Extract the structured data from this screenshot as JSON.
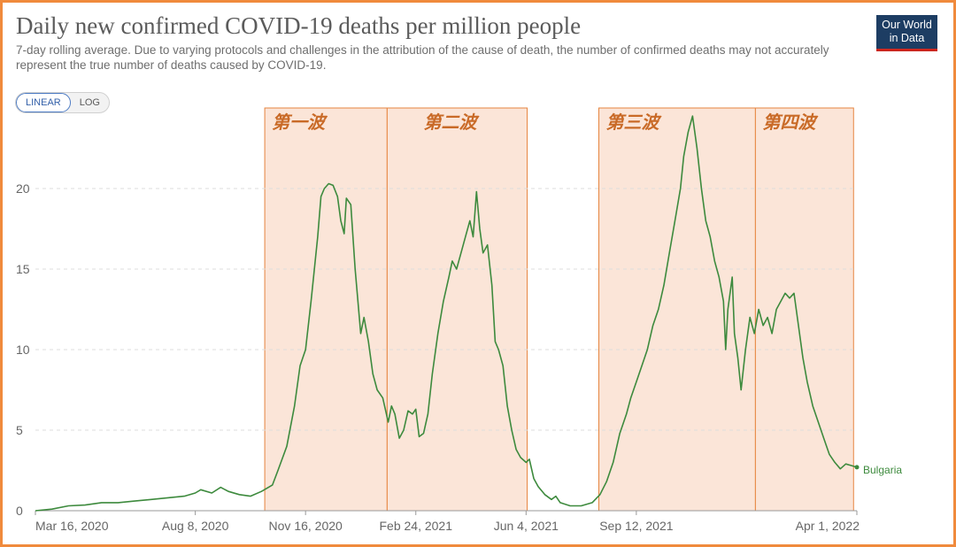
{
  "header": {
    "title": "Daily new confirmed COVID-19 deaths per million people",
    "subtitle": "7-day rolling average. Due to varying protocols and challenges in the attribution of the cause of death, the number of confirmed deaths may not accurately represent the true number of deaths caused by COVID-19.",
    "logo_line1": "Our World",
    "logo_line2": "in Data"
  },
  "scale_toggle": {
    "linear_label": "LINEAR",
    "log_label": "LOG",
    "selected": "LINEAR"
  },
  "colors": {
    "line": "#3d8a3d",
    "band_fill": "#fbe5d8",
    "band_border": "#e6843f",
    "label": "#c96a27",
    "frame": "#f08a3c"
  },
  "chart_data": {
    "type": "line",
    "title": "Daily new confirmed COVID-19 deaths per million people",
    "xlabel": "",
    "ylabel": "",
    "ylim": [
      0,
      25
    ],
    "xlim_days": [
      0,
      745
    ],
    "y_ticks": [
      0,
      5,
      10,
      15,
      20
    ],
    "x_ticks": [
      {
        "label": "Mar 16, 2020",
        "day": 0
      },
      {
        "label": "Aug 8, 2020",
        "day": 145
      },
      {
        "label": "Nov 16, 2020",
        "day": 245
      },
      {
        "label": "Feb 24, 2021",
        "day": 345
      },
      {
        "label": "Jun 4, 2021",
        "day": 445
      },
      {
        "label": "Sep 12, 2021",
        "day": 545
      },
      {
        "label": "Apr 1, 2022",
        "day": 745
      }
    ],
    "series": [
      {
        "name": "Bulgaria",
        "points": [
          [
            0,
            0
          ],
          [
            15,
            0.1
          ],
          [
            30,
            0.3
          ],
          [
            45,
            0.35
          ],
          [
            60,
            0.5
          ],
          [
            75,
            0.5
          ],
          [
            90,
            0.6
          ],
          [
            105,
            0.7
          ],
          [
            120,
            0.8
          ],
          [
            135,
            0.9
          ],
          [
            145,
            1.1
          ],
          [
            150,
            1.3
          ],
          [
            160,
            1.1
          ],
          [
            168,
            1.45
          ],
          [
            175,
            1.2
          ],
          [
            185,
            1.0
          ],
          [
            195,
            0.9
          ],
          [
            205,
            1.2
          ],
          [
            215,
            1.6
          ],
          [
            220,
            2.5
          ],
          [
            228,
            4.0
          ],
          [
            235,
            6.5
          ],
          [
            240,
            9.0
          ],
          [
            245,
            10.0
          ],
          [
            250,
            13.0
          ],
          [
            256,
            17.0
          ],
          [
            259,
            19.5
          ],
          [
            262,
            20.0
          ],
          [
            266,
            20.3
          ],
          [
            270,
            20.2
          ],
          [
            274,
            19.5
          ],
          [
            277,
            18.0
          ],
          [
            280,
            17.2
          ],
          [
            282,
            19.4
          ],
          [
            286,
            19.0
          ],
          [
            290,
            15.0
          ],
          [
            295,
            11.0
          ],
          [
            298,
            12.0
          ],
          [
            302,
            10.5
          ],
          [
            306,
            8.5
          ],
          [
            310,
            7.5
          ],
          [
            315,
            7.0
          ],
          [
            320,
            5.5
          ],
          [
            323,
            6.5
          ],
          [
            326,
            6.0
          ],
          [
            330,
            4.5
          ],
          [
            334,
            5.0
          ],
          [
            338,
            6.2
          ],
          [
            342,
            6.0
          ],
          [
            345,
            6.3
          ],
          [
            348,
            4.6
          ],
          [
            352,
            4.8
          ],
          [
            356,
            6.0
          ],
          [
            360,
            8.5
          ],
          [
            365,
            11.0
          ],
          [
            370,
            13.0
          ],
          [
            375,
            14.5
          ],
          [
            378,
            15.5
          ],
          [
            382,
            15.0
          ],
          [
            386,
            16.0
          ],
          [
            390,
            17.0
          ],
          [
            394,
            18.0
          ],
          [
            397,
            17.0
          ],
          [
            400,
            19.8
          ],
          [
            403,
            17.5
          ],
          [
            406,
            16.0
          ],
          [
            410,
            16.5
          ],
          [
            414,
            14.0
          ],
          [
            417,
            10.5
          ],
          [
            420,
            10.0
          ],
          [
            424,
            9.0
          ],
          [
            428,
            6.5
          ],
          [
            432,
            5.0
          ],
          [
            436,
            3.8
          ],
          [
            440,
            3.3
          ],
          [
            445,
            3.0
          ],
          [
            448,
            3.2
          ],
          [
            452,
            2.0
          ],
          [
            456,
            1.5
          ],
          [
            462,
            1.0
          ],
          [
            468,
            0.7
          ],
          [
            472,
            0.9
          ],
          [
            476,
            0.5
          ],
          [
            485,
            0.3
          ],
          [
            495,
            0.3
          ],
          [
            505,
            0.5
          ],
          [
            512,
            1.0
          ],
          [
            518,
            1.8
          ],
          [
            524,
            3.0
          ],
          [
            530,
            4.8
          ],
          [
            536,
            6.0
          ],
          [
            540,
            7.0
          ],
          [
            545,
            8.0
          ],
          [
            550,
            9.0
          ],
          [
            555,
            10.0
          ],
          [
            560,
            11.5
          ],
          [
            565,
            12.5
          ],
          [
            570,
            14.0
          ],
          [
            575,
            16.0
          ],
          [
            580,
            18.0
          ],
          [
            585,
            20.0
          ],
          [
            588,
            22.0
          ],
          [
            592,
            23.5
          ],
          [
            596,
            24.5
          ],
          [
            600,
            22.5
          ],
          [
            604,
            20.0
          ],
          [
            608,
            18.0
          ],
          [
            612,
            17.0
          ],
          [
            616,
            15.5
          ],
          [
            620,
            14.5
          ],
          [
            624,
            13.0
          ],
          [
            626,
            10.0
          ],
          [
            628,
            12.5
          ],
          [
            632,
            14.5
          ],
          [
            634,
            11.0
          ],
          [
            637,
            9.5
          ],
          [
            640,
            7.5
          ],
          [
            644,
            10.0
          ],
          [
            648,
            12.0
          ],
          [
            652,
            11.0
          ],
          [
            656,
            12.5
          ],
          [
            660,
            11.5
          ],
          [
            664,
            12.0
          ],
          [
            668,
            11.0
          ],
          [
            672,
            12.5
          ],
          [
            676,
            13.0
          ],
          [
            680,
            13.5
          ],
          [
            684,
            13.2
          ],
          [
            688,
            13.5
          ],
          [
            692,
            11.5
          ],
          [
            696,
            9.5
          ],
          [
            700,
            8.0
          ],
          [
            705,
            6.5
          ],
          [
            710,
            5.5
          ],
          [
            715,
            4.5
          ],
          [
            720,
            3.5
          ],
          [
            725,
            3.0
          ],
          [
            730,
            2.6
          ],
          [
            735,
            2.9
          ],
          [
            740,
            2.8
          ],
          [
            745,
            2.7
          ]
        ]
      }
    ],
    "highlight_bands": [
      {
        "label": "第一波",
        "start_day": 208,
        "end_day": 319
      },
      {
        "label": "第二波",
        "start_day": 319,
        "end_day": 446
      },
      {
        "label": "第三波",
        "start_day": 511,
        "end_day": 653
      },
      {
        "label": "第四波",
        "start_day": 653,
        "end_day": 742
      }
    ]
  }
}
